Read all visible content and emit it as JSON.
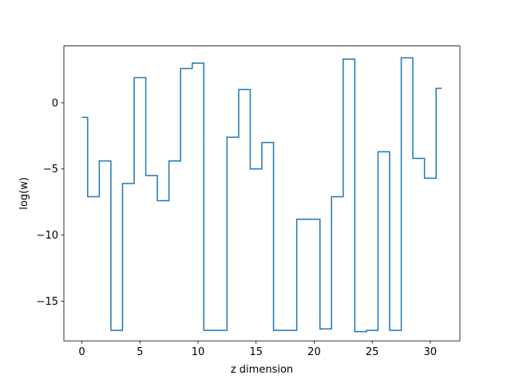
{
  "chart_data": {
    "type": "line",
    "drawstyle": "steps-mid",
    "xlabel": "z dimension",
    "ylabel": "log(w)",
    "xlim": [
      -1.55,
      32.55
    ],
    "ylim": [
      -18.0,
      4.3
    ],
    "xticks": [
      0,
      5,
      10,
      15,
      20,
      25,
      30
    ],
    "yticks": [
      -15,
      -10,
      -5,
      0
    ],
    "xtick_labels": [
      "0",
      "5",
      "10",
      "15",
      "20",
      "25",
      "30"
    ],
    "ytick_labels": [
      "−15",
      "−10",
      "−5",
      "0"
    ],
    "grid": false,
    "series": [
      {
        "color": "#1f77b4",
        "x": [
          0,
          1,
          2,
          3,
          4,
          5,
          6,
          7,
          8,
          9,
          10,
          11,
          12,
          13,
          14,
          15,
          16,
          17,
          18,
          19,
          20,
          21,
          22,
          23,
          24,
          25,
          26,
          27,
          28,
          29,
          30,
          31
        ],
        "y": [
          -1.1,
          -7.1,
          -4.4,
          -17.2,
          -6.1,
          1.9,
          -5.5,
          -7.4,
          -4.4,
          2.6,
          3.0,
          -17.2,
          -17.2,
          -2.6,
          1.0,
          -5.0,
          -3.0,
          -17.2,
          -17.2,
          -8.8,
          -8.8,
          -17.1,
          -7.1,
          3.3,
          -17.3,
          -17.2,
          -3.7,
          -17.2,
          3.4,
          -4.2,
          -5.7,
          1.1
        ]
      }
    ]
  }
}
